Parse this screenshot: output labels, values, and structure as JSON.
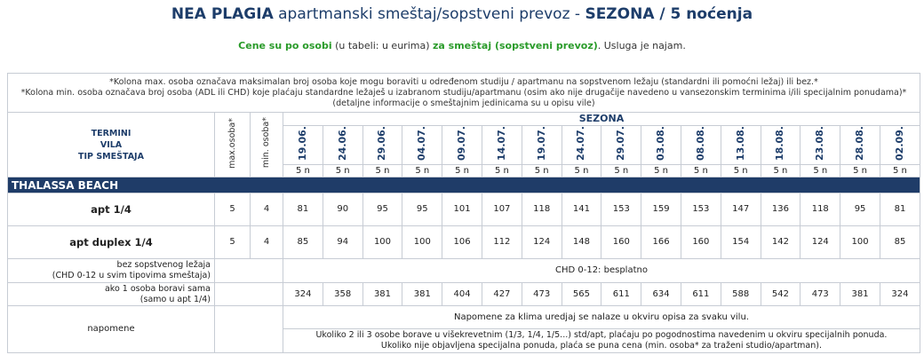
{
  "title": {
    "name": "NEA PLAGIA",
    "desc": " apartmanski smeštaj/sopstveni prevoz - ",
    "season": "SEZONA / 5 noćenja"
  },
  "subtitle": {
    "part1": "Cene su po osobi",
    "part2": " (u tabeli: u eurima) ",
    "part3": "za smeštaj (sopstveni prevoz)",
    "part4": ". Usluga je najam."
  },
  "notes_top": [
    "*Kolona max. osoba označava maksimalan broj osoba koje mogu boraviti u određenom studiju / apartmanu na sopstvenom ležaju (standardni ili pomoćni ležaj) ili bez.*",
    "*Kolona min. osoba označava broj osoba (ADL ili CHD) koje plaćaju standardne ležaješ u izabranom studiju/apartmanu (osim ako nije drugačije navedeno u vansezonskim terminima i/ili specijalnim ponudama)*",
    "(detaljne informacije o smeštajnim jedinicama su u opisu vile)"
  ],
  "header": {
    "termini": "TERMINI",
    "vila": "VILA",
    "tip": "TIP SMEŠTAJA",
    "max": "max.osoba*",
    "min": "min. osoba*",
    "sezona": "SEZONA"
  },
  "dates": [
    "19.06.",
    "24.06.",
    "29.06.",
    "04.07.",
    "09.07.",
    "14.07.",
    "19.07.",
    "24.07.",
    "29.07.",
    "03.08.",
    "08.08.",
    "13.08.",
    "18.08.",
    "23.08.",
    "28.08.",
    "02.09."
  ],
  "nights": [
    "5 n",
    "5 n",
    "5 n",
    "5 n",
    "5 n",
    "5 n",
    "5 n",
    "5 n",
    "5 n",
    "5 n",
    "5 n",
    "5 n",
    "5 n",
    "5 n",
    "5 n",
    "5 n"
  ],
  "villa_name": "THALASSA BEACH",
  "rows": [
    {
      "type": "apt 1/4",
      "max": "5",
      "min": "4",
      "prices": [
        "81",
        "90",
        "95",
        "95",
        "101",
        "107",
        "118",
        "141",
        "153",
        "159",
        "153",
        "147",
        "136",
        "118",
        "95",
        "81"
      ]
    },
    {
      "type": "apt duplex 1/4",
      "max": "5",
      "min": "4",
      "prices": [
        "85",
        "94",
        "100",
        "100",
        "106",
        "112",
        "124",
        "148",
        "160",
        "166",
        "160",
        "154",
        "142",
        "124",
        "100",
        "85"
      ]
    }
  ],
  "no_bed": {
    "label_line1": "bez sopstvenog ležaja",
    "label_line2": "(CHD 0-12 u svim tipovima smeštaja)",
    "value": "CHD 0-12: besplatno"
  },
  "single": {
    "label_line1": "ako 1 osoba boravi sama",
    "label_line2": "(samo u apt 1/4)",
    "prices": [
      "324",
      "358",
      "381",
      "381",
      "404",
      "427",
      "473",
      "565",
      "611",
      "634",
      "611",
      "588",
      "542",
      "473",
      "381",
      "324"
    ]
  },
  "napomene": {
    "label": "napomene",
    "line1": "Napomene za klima uredjaj se nalaze u okviru opisa za svaku vilu.",
    "line2": "Ukoliko 2 ili 3 osobe borave u višekrevetnim (1/3, 1/4, 1/5...) std/apt, plaćaju po pogodnostima navedenim u okviru specijalnih ponuda.",
    "line3": "Ukoliko nije objavljena specijalna ponuda, plaća se puna cena (min. osoba* za traženi studio/apartman)."
  }
}
